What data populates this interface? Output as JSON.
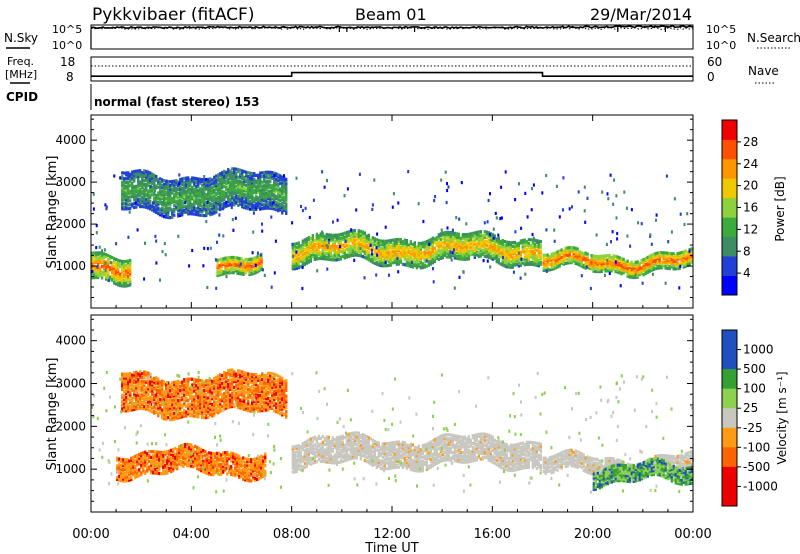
{
  "header": {
    "station": "Pykkvibaer (fitACF)",
    "beam": "Beam 01",
    "date": "29/Mar/2014"
  },
  "labels": {
    "nsky": "N.Sky",
    "nsearch": "N.Search",
    "freq_line1": "Freq.",
    "freq_line2": "[MHz]",
    "nave": "Nave",
    "cpid": "CPID",
    "mode": "normal (fast stereo) 153",
    "time_axis": "Time UT",
    "slant_range": "Slant Range [km]",
    "power_cbar": "Power [dB]",
    "velocity_cbar": "Velocity [m s⁻¹]"
  },
  "noise_panel": {
    "left_ticks": [
      "10^5",
      "10^0"
    ],
    "right_ticks": [
      "10^5",
      "10^0"
    ]
  },
  "freq_panel": {
    "left_ticks": [
      "18",
      "8"
    ],
    "right_ticks": [
      "60",
      "0"
    ]
  },
  "colors": {
    "power": [
      "#0000ff",
      "#2040d8",
      "#3c8c64",
      "#3caa3c",
      "#8cd23c",
      "#f0c800",
      "#ff9600",
      "#ff5000",
      "#f00000"
    ],
    "velocity": [
      "#ee0000",
      "#ff6400",
      "#ff9a14",
      "#c8c8c0",
      "#c8c8c0",
      "#8cd250",
      "#32a032",
      "#2050c0"
    ]
  },
  "chart_data": [
    {
      "type": "line",
      "title": "",
      "xlabel": "",
      "ylabel": "N.Sky",
      "y_scale": "log",
      "ylim": [
        1,
        100000
      ],
      "xlim": [
        "00:00",
        "24:00"
      ],
      "series": [
        {
          "name": "N.Sky",
          "x": [
            "00:00",
            "04:00",
            "08:00",
            "12:00",
            "16:00",
            "20:00",
            "24:00"
          ],
          "values": [
            30000,
            30000,
            35000,
            30000,
            30000,
            40000,
            50000
          ]
        }
      ]
    },
    {
      "type": "line",
      "title": "",
      "xlabel": "",
      "ylabel": "Freq. [MHz]",
      "ylim": [
        8,
        18
      ],
      "xlim": [
        "00:00",
        "24:00"
      ],
      "series": [
        {
          "name": "Freq.",
          "x": [
            "00:00",
            "08:00",
            "08:00",
            "18:00",
            "18:00",
            "24:00"
          ],
          "values": [
            10,
            10,
            11.5,
            11.5,
            10,
            10
          ]
        }
      ]
    },
    {
      "type": "heatmap",
      "title": "",
      "xlabel": "",
      "ylabel": "Slant Range [km]",
      "xlim": [
        "00:00",
        "24:00"
      ],
      "ylim": [
        0,
        4600
      ],
      "y_ticks": [
        1000,
        2000,
        3000,
        4000
      ],
      "colorbar": {
        "label": "Power [dB]",
        "ticks": [
          4,
          8,
          12,
          16,
          20,
          24,
          28
        ],
        "range": [
          0,
          32
        ]
      },
      "bands": [
        {
          "time_start": 1.2,
          "time_end": 7.8,
          "range_low": 2300,
          "range_high": 3200,
          "level": 12
        },
        {
          "time_start": 8.0,
          "time_end": 18.0,
          "range_low": 1100,
          "range_high": 1700,
          "level": 24
        },
        {
          "time_start": 18.0,
          "time_end": 24.0,
          "range_low": 900,
          "range_high": 1300,
          "level": 28
        },
        {
          "time_start": 0.0,
          "time_end": 1.6,
          "range_low": 700,
          "range_high": 1300,
          "level": 28
        },
        {
          "time_start": 5.0,
          "time_end": 6.8,
          "range_low": 900,
          "range_high": 1300,
          "level": 28
        }
      ]
    },
    {
      "type": "heatmap",
      "title": "",
      "xlabel": "Time UT",
      "ylabel": "Slant Range [km]",
      "xlim": [
        "00:00",
        "24:00"
      ],
      "ylim": [
        0,
        4600
      ],
      "y_ticks": [
        1000,
        2000,
        3000,
        4000
      ],
      "x_ticks": [
        "00:00",
        "04:00",
        "08:00",
        "12:00",
        "16:00",
        "20:00",
        "00:00"
      ],
      "colorbar": {
        "label": "Velocity [m s⁻¹]",
        "ticks": [
          -1000,
          -500,
          -100,
          -25,
          25,
          100,
          500,
          1000
        ]
      },
      "bands": [
        {
          "time_start": 1.2,
          "time_end": 7.8,
          "range_low": 2300,
          "range_high": 3200,
          "velocity": -100
        },
        {
          "time_start": 8.0,
          "time_end": 18.0,
          "range_low": 1100,
          "range_high": 1700,
          "velocity": 0
        },
        {
          "time_start": 18.0,
          "time_end": 24.0,
          "range_low": 900,
          "range_high": 1300,
          "velocity": 0
        },
        {
          "time_start": 1.0,
          "time_end": 7.0,
          "range_low": 900,
          "range_high": 1400,
          "velocity": -300
        },
        {
          "time_start": 20.0,
          "time_end": 24.0,
          "range_low": 700,
          "range_high": 1100,
          "velocity": 300
        }
      ]
    }
  ]
}
